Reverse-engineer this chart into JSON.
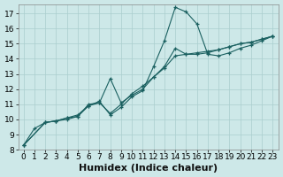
{
  "xlabel": "Humidex (Indice chaleur)",
  "bg_color": "#cde8e8",
  "grid_color": "#aacece",
  "line_color": "#1a6060",
  "xlim": [
    -0.5,
    23.5
  ],
  "ylim": [
    8,
    17.6
  ],
  "xticks": [
    0,
    1,
    2,
    3,
    4,
    5,
    6,
    7,
    8,
    9,
    10,
    11,
    12,
    13,
    14,
    15,
    16,
    17,
    18,
    19,
    20,
    21,
    22,
    23
  ],
  "yticks": [
    8,
    9,
    10,
    11,
    12,
    13,
    14,
    15,
    16,
    17
  ],
  "line1_x": [
    0,
    1,
    2,
    3,
    4,
    5,
    6,
    7,
    8,
    9,
    10,
    11,
    12,
    13,
    14,
    15,
    16,
    17,
    18,
    19,
    20,
    21,
    22,
    23
  ],
  "line1_y": [
    8.3,
    9.4,
    9.8,
    9.9,
    10.1,
    10.3,
    10.9,
    11.1,
    10.4,
    11.0,
    11.7,
    12.2,
    12.8,
    13.4,
    14.2,
    14.3,
    14.4,
    14.5,
    14.6,
    14.8,
    15.0,
    15.1,
    15.3,
    15.5
  ],
  "line2_x": [
    0,
    2,
    3,
    4,
    5,
    6,
    7,
    8,
    9,
    10,
    11,
    12,
    13,
    14,
    15,
    16,
    17,
    18,
    19,
    20,
    21,
    22,
    23
  ],
  "line2_y": [
    8.3,
    9.8,
    9.9,
    10.1,
    10.2,
    10.9,
    11.2,
    10.3,
    10.8,
    11.5,
    11.9,
    13.5,
    15.2,
    17.4,
    17.1,
    16.3,
    14.3,
    14.2,
    14.4,
    14.7,
    14.9,
    15.2,
    15.5
  ],
  "line3_x": [
    0,
    2,
    3,
    4,
    5,
    6,
    7,
    8,
    9,
    10,
    11,
    12,
    13,
    14,
    15,
    16,
    17,
    18,
    19,
    20,
    21,
    22,
    23
  ],
  "line3_y": [
    8.3,
    9.8,
    9.9,
    10.0,
    10.2,
    11.0,
    11.1,
    12.7,
    11.1,
    11.6,
    12.0,
    12.8,
    13.5,
    14.7,
    14.3,
    14.3,
    14.4,
    14.6,
    14.8,
    15.0,
    15.1,
    15.3,
    15.5
  ],
  "xlabel_fontsize": 8,
  "tick_fontsize": 6.5
}
